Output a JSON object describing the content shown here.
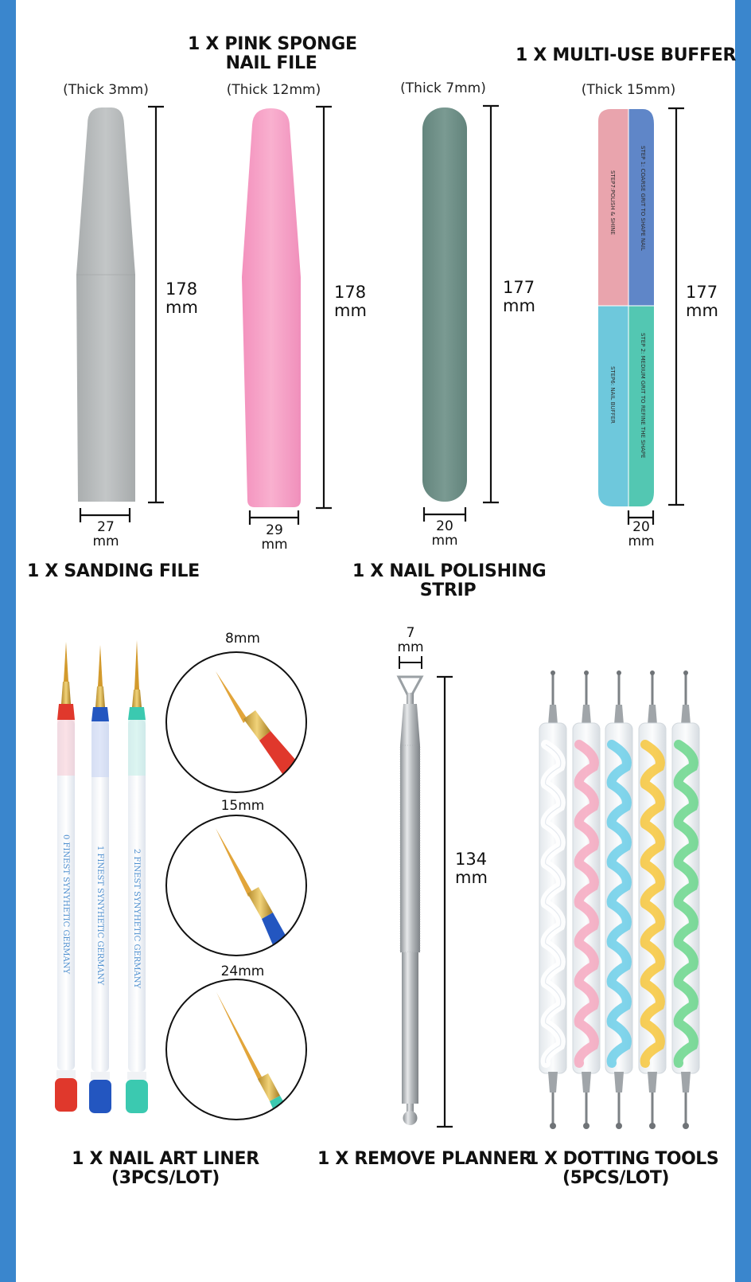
{
  "colors": {
    "frame_blue": "#3a86cd",
    "sanding_gray": "#b9bcbd",
    "sponge_pink": "#f8a6c8",
    "polish_green": "#6f9188",
    "buffer_pink": "#e9a4ad",
    "buffer_blue": "#5f86c8",
    "buffer_aqua": "#6ec8dc",
    "buffer_teal": "#53c7b2",
    "liner_red": "#e0382c",
    "liner_blue": "#2356c0",
    "liner_teal": "#3bc9b0"
  },
  "top_section": {
    "pink_sponge_title": "1 X PINK SPONGE\nNAIL FILE",
    "multi_buffer_title": "1 X MULTI-USE BUFFER",
    "sanding_file_title": "1 X SANDING FILE",
    "polishing_strip_title": "1 X NAIL POLISHING\nSTRIP",
    "sanding_file": {
      "thickness": "(Thick 3mm)",
      "length": "178\nmm",
      "width": "27\nmm"
    },
    "pink_sponge": {
      "thickness": "(Thick 12mm)",
      "length": "178\nmm",
      "width": "29\nmm"
    },
    "polishing_strip": {
      "thickness": "(Thick 7mm)",
      "length": "177\nmm",
      "width": "20\nmm"
    },
    "multi_buffer": {
      "thickness": "(Thick 15mm)",
      "length": "177\nmm",
      "width": "20\nmm",
      "step_labels": [
        "STEP7:POLISH & SHINE",
        "STEP 1: COARSE GRIT TO SHAPE NAIL",
        "STEP6: NAIL BUFFER",
        "STEP 2: MEDIUM GRIT TO REFINE THE SHAPE"
      ]
    }
  },
  "bottom_section": {
    "liner_sizes": [
      "8mm",
      "15mm",
      "24mm"
    ],
    "brush_print": [
      "0   FINEST SYNYHETIC   GERMANY",
      "1   FINEST SYNYHETIC   GERMANY",
      "2   FINEST SYNYHETIC   GERMANY"
    ],
    "liner_title": "1 X NAIL ART LINER\n(3PCS/LOT)",
    "planner_width": "7\nmm",
    "planner_length": "134\nmm",
    "planner_title": "1 X REMOVE PLANNER",
    "dotting_title": "1 X DOTTING TOOLS\n(5PCS/LOT)"
  }
}
